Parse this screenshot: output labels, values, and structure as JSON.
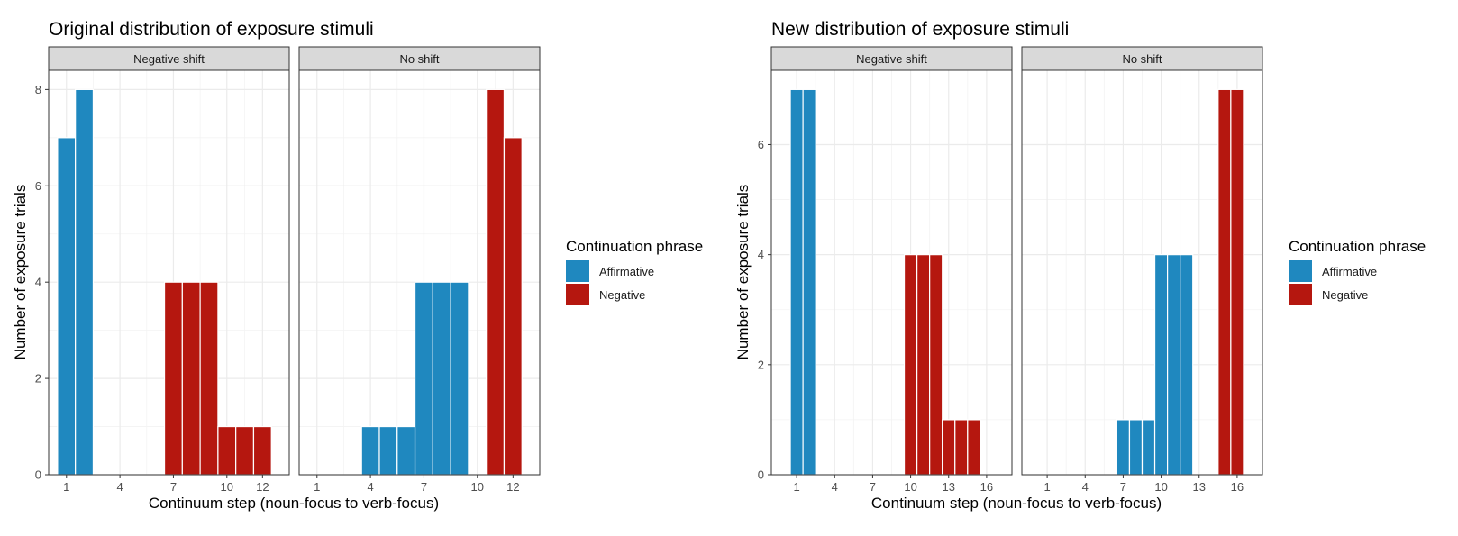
{
  "colors": {
    "affirmative": "#1f88bf",
    "negative": "#b5170f",
    "strip_fill": "#d9d9d9",
    "panel_border": "#333333",
    "grid": "#ebebeb"
  },
  "legend": {
    "title": "Continuation phrase",
    "items": [
      {
        "key": "affirmative",
        "label": "Affirmative"
      },
      {
        "key": "negative",
        "label": "Negative"
      }
    ]
  },
  "chart_data": [
    {
      "type": "bar",
      "title": "Original distribution of exposure stimuli",
      "xlabel": "Continuum step (noun-focus to verb-focus)",
      "ylabel": "Number of exposure trials",
      "xlim": [
        0,
        13.5
      ],
      "ylim": [
        0,
        8.4
      ],
      "x_ticks": [
        1,
        4,
        7,
        10,
        12
      ],
      "y_ticks": [
        0,
        2,
        4,
        6,
        8
      ],
      "grid": true,
      "legend_position": "right",
      "facets": [
        {
          "label": "Negative shift",
          "bars": [
            {
              "x": 1,
              "y": 7,
              "series": "affirmative"
            },
            {
              "x": 2,
              "y": 8,
              "series": "affirmative"
            },
            {
              "x": 7,
              "y": 4,
              "series": "negative"
            },
            {
              "x": 8,
              "y": 4,
              "series": "negative"
            },
            {
              "x": 9,
              "y": 4,
              "series": "negative"
            },
            {
              "x": 10,
              "y": 1,
              "series": "negative"
            },
            {
              "x": 11,
              "y": 1,
              "series": "negative"
            },
            {
              "x": 12,
              "y": 1,
              "series": "negative"
            }
          ]
        },
        {
          "label": "No shift",
          "bars": [
            {
              "x": 4,
              "y": 1,
              "series": "affirmative"
            },
            {
              "x": 5,
              "y": 1,
              "series": "affirmative"
            },
            {
              "x": 6,
              "y": 1,
              "series": "affirmative"
            },
            {
              "x": 7,
              "y": 4,
              "series": "affirmative"
            },
            {
              "x": 8,
              "y": 4,
              "series": "affirmative"
            },
            {
              "x": 9,
              "y": 4,
              "series": "affirmative"
            },
            {
              "x": 11,
              "y": 8,
              "series": "negative"
            },
            {
              "x": 12,
              "y": 7,
              "series": "negative"
            }
          ]
        }
      ]
    },
    {
      "type": "bar",
      "title": "New distribution of exposure stimuli",
      "xlabel": "Continuum step (noun-focus to verb-focus)",
      "ylabel": "Number of exposure trials",
      "xlim": [
        -1,
        18
      ],
      "ylim": [
        0,
        7.35
      ],
      "x_ticks": [
        1,
        4,
        7,
        10,
        13,
        16
      ],
      "y_ticks": [
        0,
        2,
        4,
        6
      ],
      "grid": true,
      "legend_position": "right",
      "facets": [
        {
          "label": "Negative shift",
          "bars": [
            {
              "x": 1,
              "y": 7,
              "series": "affirmative"
            },
            {
              "x": 2,
              "y": 7,
              "series": "affirmative"
            },
            {
              "x": 10,
              "y": 4,
              "series": "negative"
            },
            {
              "x": 11,
              "y": 4,
              "series": "negative"
            },
            {
              "x": 12,
              "y": 4,
              "series": "negative"
            },
            {
              "x": 13,
              "y": 1,
              "series": "negative"
            },
            {
              "x": 14,
              "y": 1,
              "series": "negative"
            },
            {
              "x": 15,
              "y": 1,
              "series": "negative"
            }
          ]
        },
        {
          "label": "No shift",
          "bars": [
            {
              "x": 7,
              "y": 1,
              "series": "affirmative"
            },
            {
              "x": 8,
              "y": 1,
              "series": "affirmative"
            },
            {
              "x": 9,
              "y": 1,
              "series": "affirmative"
            },
            {
              "x": 10,
              "y": 4,
              "series": "affirmative"
            },
            {
              "x": 11,
              "y": 4,
              "series": "affirmative"
            },
            {
              "x": 12,
              "y": 4,
              "series": "affirmative"
            },
            {
              "x": 15,
              "y": 7,
              "series": "negative"
            },
            {
              "x": 16,
              "y": 7,
              "series": "negative"
            }
          ]
        }
      ]
    }
  ]
}
